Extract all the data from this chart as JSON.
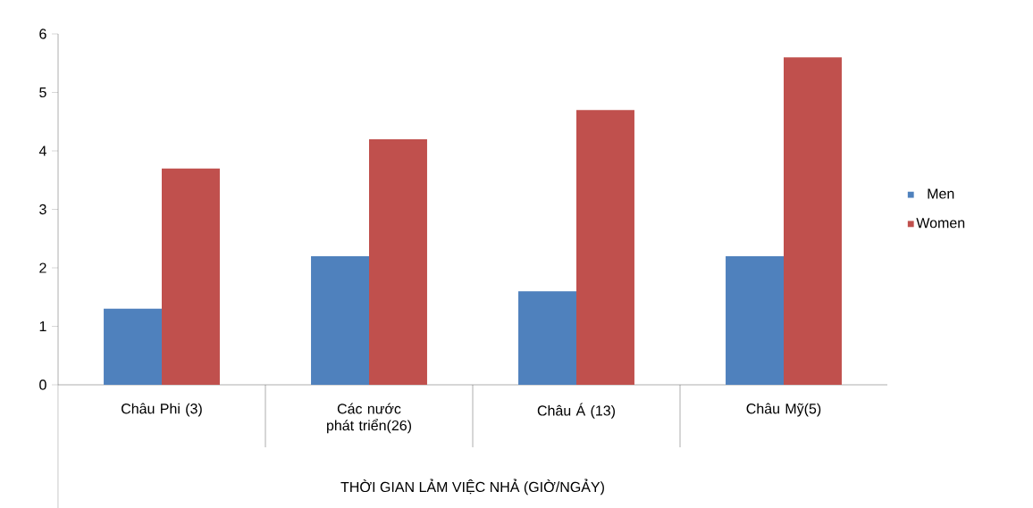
{
  "chart_data": {
    "type": "bar",
    "xlabel": "THỜI GIAN LẢM VIỆC NHẢ (GIỜ/NGẢY)",
    "categories": [
      "Châu Phi (3)",
      "Các nước phát triển(26)",
      "Châu Á (13)",
      "Châu Mỹ(5)"
    ],
    "series": [
      {
        "name": "Men",
        "color": "#4f81bd",
        "values": [
          1.3,
          2.2,
          1.6,
          2.2
        ]
      },
      {
        "name": "Women",
        "color": "#c0504d",
        "values": [
          3.7,
          4.2,
          4.7,
          5.6
        ]
      }
    ],
    "ylim": [
      0,
      6
    ],
    "yticks": [
      0,
      1,
      2,
      3,
      4,
      5,
      6
    ],
    "legend": "right"
  }
}
